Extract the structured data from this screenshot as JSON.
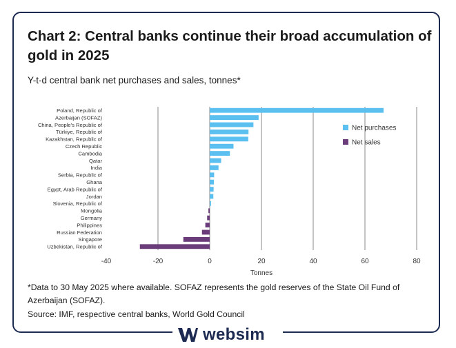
{
  "title": "Chart 2: Central banks continue their broad accumulation of gold in 2025",
  "subtitle": "Y-t-d central bank net purchases and sales, tonnes*",
  "note": "*Data to 30 May 2025 where available. SOFAZ represents the gold reserves of the State Oil Fund of Azerbaijan (SOFAZ).",
  "source": "Source: IMF, respective central banks, World Gold Council",
  "brand": {
    "name": "websim",
    "icon": "websim-logo-icon"
  },
  "colors": {
    "purchases": "#5bc0f0",
    "sales": "#6a3d7a",
    "grid": "#888888",
    "frame": "#1c2a52"
  },
  "chart_data": {
    "type": "bar",
    "orientation": "horizontal",
    "xlabel": "Tonnes",
    "xlim": [
      -40,
      80
    ],
    "xticks": [
      -40,
      -20,
      0,
      20,
      40,
      60,
      80
    ],
    "legend": [
      "Net purchases",
      "Net sales"
    ],
    "categories": [
      "Poland, Republic of",
      "Azerbaijan (SOFAZ)",
      "China, People's Republic of",
      "Türkiye, Republic of",
      "Kazakhstan, Republic of",
      "Czech Republic",
      "Cambodia",
      "Qatar",
      "India",
      "Serbia, Republic of",
      "Ghana",
      "Egypt, Arab Republic of",
      "Jordan",
      "Slovenia, Republic of",
      "Mongolia",
      "Germany",
      "Philippines",
      "Russian Federation",
      "Singapore",
      "Uzbekistan, Republic of"
    ],
    "values": [
      67.2,
      18.9,
      16.9,
      15.0,
      14.9,
      9.2,
      7.8,
      4.4,
      3.4,
      1.7,
      1.6,
      1.5,
      1.4,
      0.5,
      -0.5,
      -1.0,
      -1.7,
      -3.0,
      -10.2,
      -27.0
    ]
  }
}
